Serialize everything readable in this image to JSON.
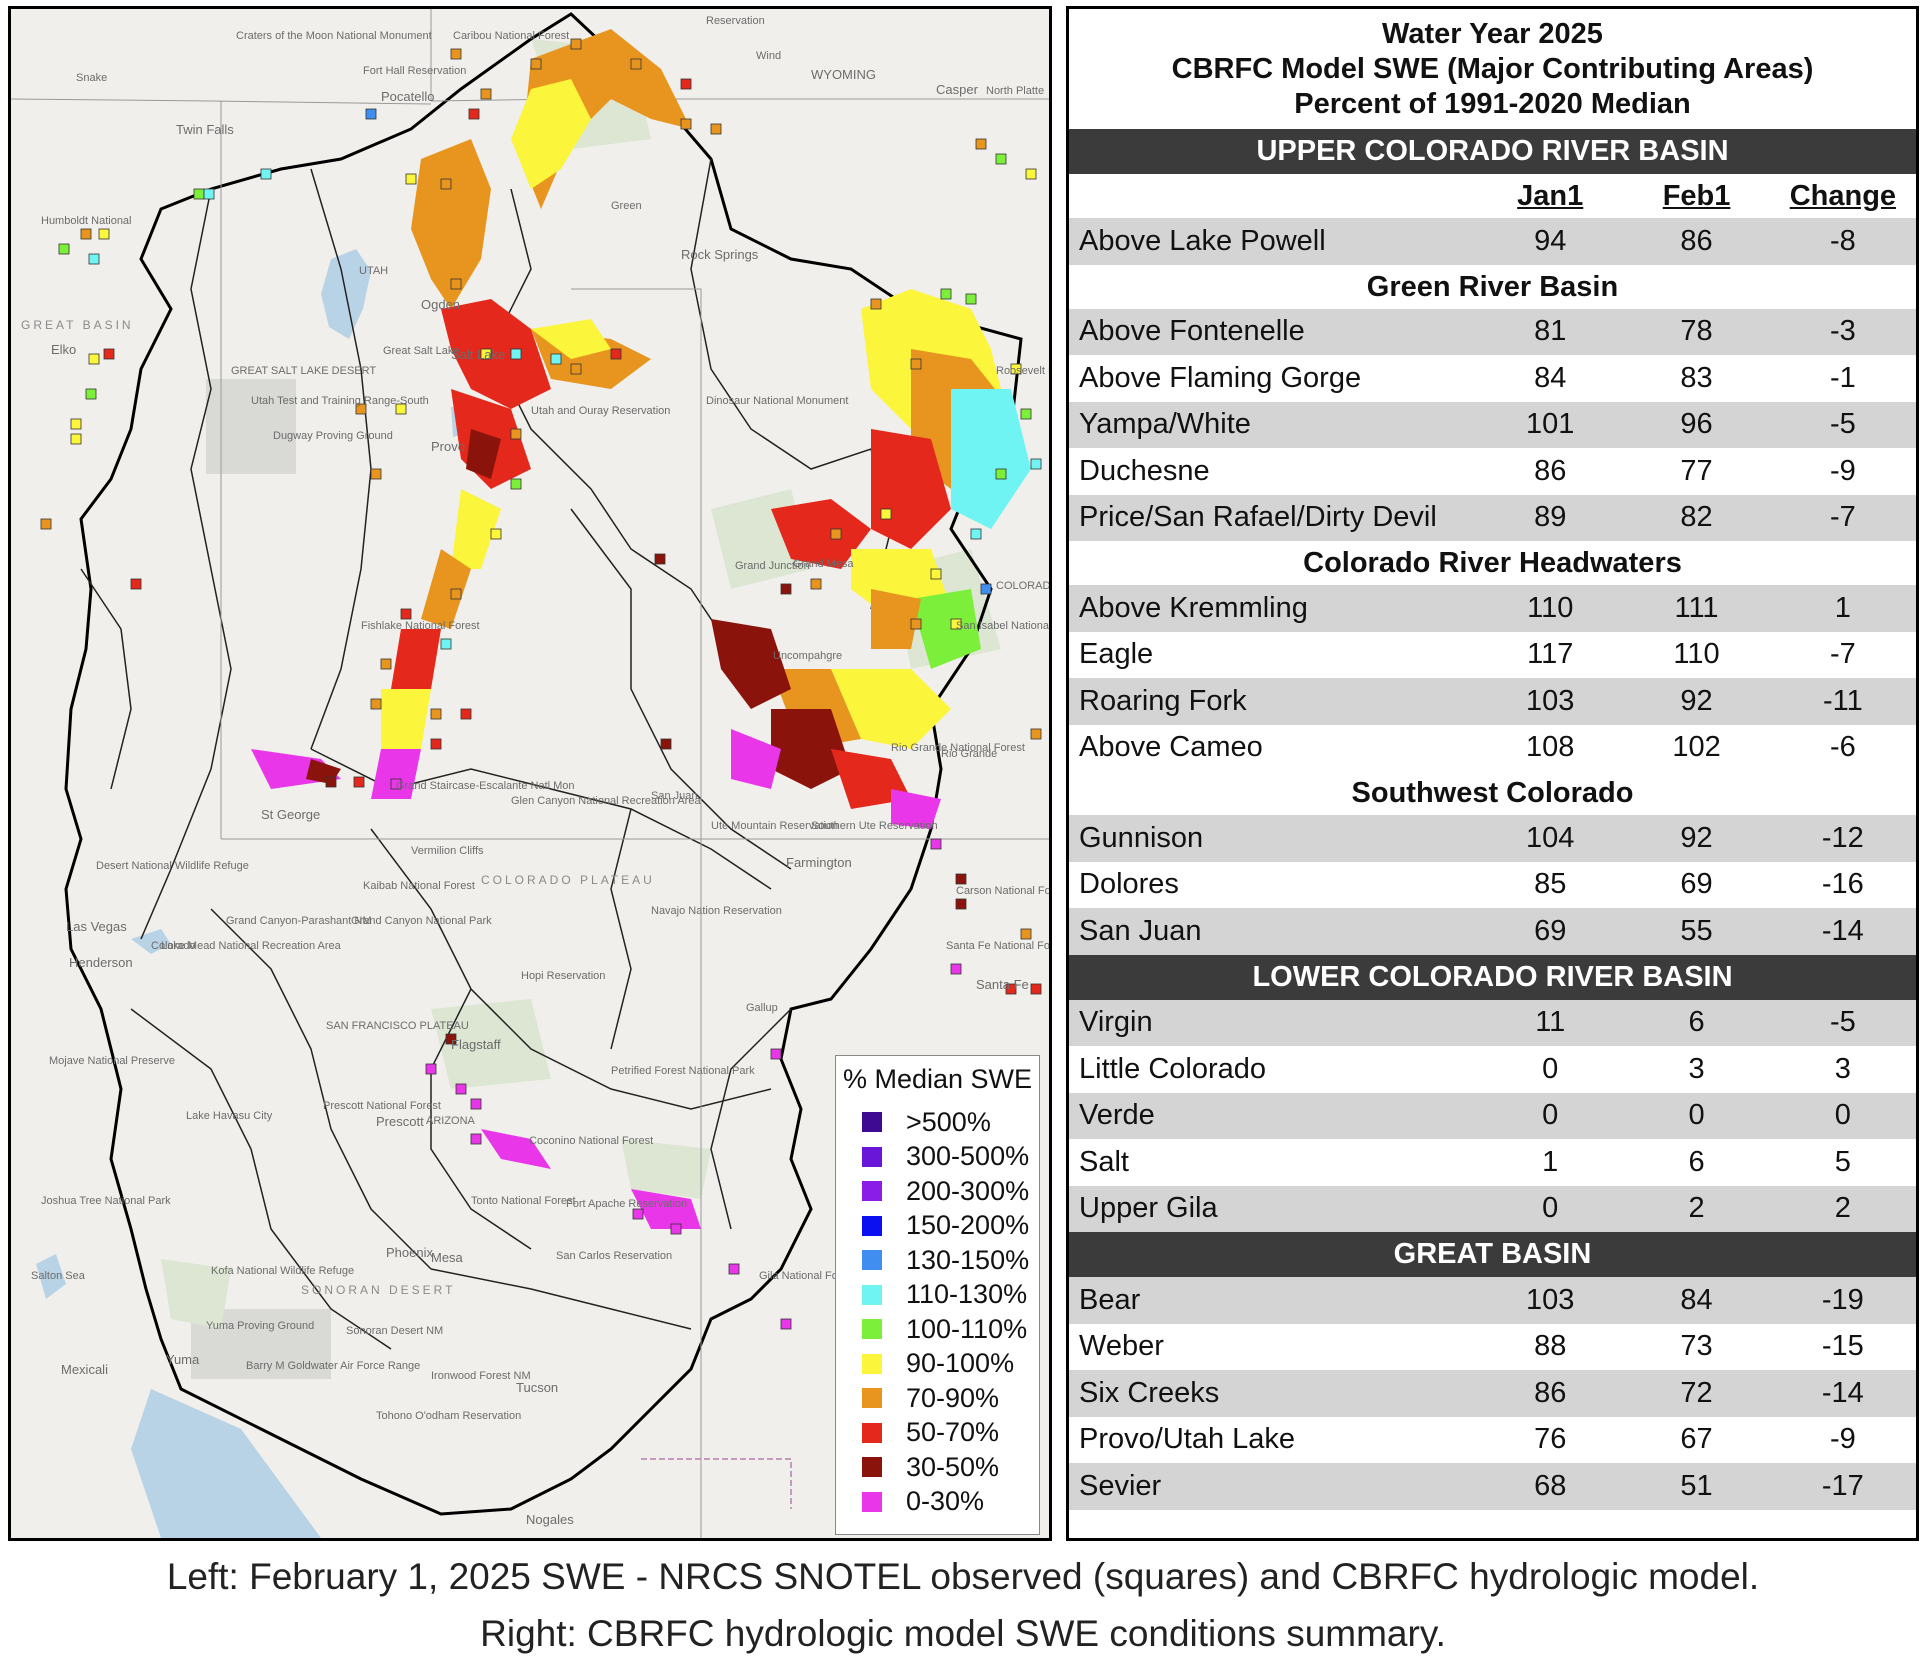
{
  "map": {
    "place_labels": [
      "WYOMING",
      "UTAH",
      "ARIZONA",
      "COLORADO",
      "Casper",
      "North Platte",
      "Reservation",
      "Twin Falls",
      "Pocatello",
      "Fort Hall Reservation",
      "Craters of the Moon National Monument",
      "Caribou National Forest",
      "Rock Springs",
      "Green",
      "Elko",
      "Humboldt National",
      "GREAT SALT LAKE DESERT",
      "Great Salt Lake",
      "Ogden",
      "Salt Lake",
      "Provo",
      "Utah Test and Training Range-South",
      "Dugway Proving Ground",
      "Utah and Ouray Reservation",
      "Dinosaur National Monument",
      "Grand Junction",
      "Grand Mesa",
      "Uncompahgre",
      "Rio Grande National Forest",
      "Rio Grande",
      "Ute Mountain Reservation",
      "Southern Ute Reservation",
      "Farmington",
      "San Juan",
      "COLORADO PLATEAU",
      "Navajo Nation Reservation",
      "Hopi Reservation",
      "Gallup",
      "St George",
      "Las Vegas",
      "Henderson",
      "Lake Mead National Recreation Area",
      "Grand Canyon-Parashant NM",
      "Grand Canyon National Park",
      "Kaibab National Forest",
      "Glen Canyon National Recreation Area",
      "Grand Staircase-Escalante Natl Mon",
      "Vermilion Cliffs",
      "Flagstaff",
      "SAN FRANCISCO PLATEAU",
      "Prescott",
      "Prescott National Forest",
      "Coconino National Forest",
      "Tonto National Forest",
      "Fort Apache Reservation",
      "San Carlos Reservation",
      "Gila National Forest",
      "Petrified Forest National Park",
      "Phoenix",
      "Mesa",
      "SONORAN DESERT",
      "Sonoran Desert NM",
      "Yuma",
      "Yuma Proving Ground",
      "Barry M Goldwater Air Force Range",
      "Ironwood Forest NM",
      "Tucson",
      "Mexicali",
      "Lake Havasu City",
      "Mojave National Preserve",
      "Joshua Tree National Park",
      "Salton Sea",
      "Santa Fe National Forest",
      "Carson National Forest",
      "Santa Fe",
      "San Isabel National Forest",
      "Roosevelt National Forest",
      "Fishlake National Forest",
      "Nogales",
      "Desert National Wildlife Refuge",
      "Kofa National Wildlife Refuge",
      "Tohono O'odham Reservation",
      "Colorado",
      "Snake",
      "Wind",
      "GREAT BASIN"
    ],
    "legend": {
      "title": "% Median SWE",
      "items": [
        {
          "label": ">500%",
          "color": "#3d0a91"
        },
        {
          "label": "300-500%",
          "color": "#6a16d8"
        },
        {
          "label": "200-300%",
          "color": "#8b1de8"
        },
        {
          "label": "150-200%",
          "color": "#0a10f0"
        },
        {
          "label": "130-150%",
          "color": "#3f8ef0"
        },
        {
          "label": "110-130%",
          "color": "#6ff3f3"
        },
        {
          "label": "100-110%",
          "color": "#7cef3a"
        },
        {
          "label": "90-100%",
          "color": "#fbf53b"
        },
        {
          "label": "70-90%",
          "color": "#e8951f"
        },
        {
          "label": "50-70%",
          "color": "#e5281c"
        },
        {
          "label": "30-50%",
          "color": "#8a140c"
        },
        {
          "label": "0-30%",
          "color": "#e836e8"
        }
      ]
    }
  },
  "table": {
    "header_lines": [
      "Water Year 2025",
      "CBRFC Model SWE (Major Contributing Areas)",
      "Percent of 1991-2020 Median"
    ],
    "columns": [
      "Jan1",
      "Feb1",
      "Change"
    ],
    "sections": [
      {
        "bar": "UPPER COLORADO RIVER BASIN",
        "show_column_header": true,
        "groups": [
          {
            "subhead": "",
            "rows": [
              {
                "name": "Above Lake Powell",
                "jan1": "94",
                "feb1": "86",
                "change": "-8"
              }
            ]
          },
          {
            "subhead": "Green River Basin",
            "rows": [
              {
                "name": "Above Fontenelle",
                "jan1": "81",
                "feb1": "78",
                "change": "-3"
              },
              {
                "name": "Above Flaming Gorge",
                "jan1": "84",
                "feb1": "83",
                "change": "-1"
              },
              {
                "name": "Yampa/White",
                "jan1": "101",
                "feb1": "96",
                "change": "-5"
              },
              {
                "name": "Duchesne",
                "jan1": "86",
                "feb1": "77",
                "change": "-9"
              },
              {
                "name": "Price/San Rafael/Dirty Devil",
                "jan1": "89",
                "feb1": "82",
                "change": "-7"
              }
            ]
          },
          {
            "subhead": "Colorado River Headwaters",
            "rows": [
              {
                "name": "Above Kremmling",
                "jan1": "110",
                "feb1": "111",
                "change": "1"
              },
              {
                "name": "Eagle",
                "jan1": "117",
                "feb1": "110",
                "change": "-7"
              },
              {
                "name": "Roaring Fork",
                "jan1": "103",
                "feb1": "92",
                "change": "-11"
              },
              {
                "name": "Above Cameo",
                "jan1": "108",
                "feb1": "102",
                "change": "-6"
              }
            ]
          },
          {
            "subhead": "Southwest Colorado",
            "rows": [
              {
                "name": "Gunnison",
                "jan1": "104",
                "feb1": "92",
                "change": "-12"
              },
              {
                "name": "Dolores",
                "jan1": "85",
                "feb1": "69",
                "change": "-16"
              },
              {
                "name": "San Juan",
                "jan1": "69",
                "feb1": "55",
                "change": "-14"
              }
            ]
          }
        ]
      },
      {
        "bar": "LOWER COLORADO RIVER BASIN",
        "show_column_header": false,
        "groups": [
          {
            "subhead": "",
            "rows": [
              {
                "name": "Virgin",
                "jan1": "11",
                "feb1": "6",
                "change": "-5"
              },
              {
                "name": "Little Colorado",
                "jan1": "0",
                "feb1": "3",
                "change": "3"
              },
              {
                "name": "Verde",
                "jan1": "0",
                "feb1": "0",
                "change": "0"
              },
              {
                "name": "Salt",
                "jan1": "1",
                "feb1": "6",
                "change": "5"
              },
              {
                "name": "Upper Gila",
                "jan1": "0",
                "feb1": "2",
                "change": "2"
              }
            ]
          }
        ]
      },
      {
        "bar": "GREAT BASIN",
        "show_column_header": false,
        "groups": [
          {
            "subhead": "",
            "rows": [
              {
                "name": "Bear",
                "jan1": "103",
                "feb1": "84",
                "change": "-19"
              },
              {
                "name": "Weber",
                "jan1": "88",
                "feb1": "73",
                "change": "-15"
              },
              {
                "name": "Six Creeks",
                "jan1": "86",
                "feb1": "72",
                "change": "-14"
              },
              {
                "name": "Provo/Utah Lake",
                "jan1": "76",
                "feb1": "67",
                "change": "-9"
              },
              {
                "name": "Sevier",
                "jan1": "68",
                "feb1": "51",
                "change": "-17"
              }
            ]
          }
        ]
      }
    ]
  },
  "caption": {
    "line1": "Left: February 1, 2025 SWE - NRCS SNOTEL observed (squares) and CBRFC hydrologic model.",
    "line2": "Right: CBRFC hydrologic model SWE conditions summary."
  }
}
